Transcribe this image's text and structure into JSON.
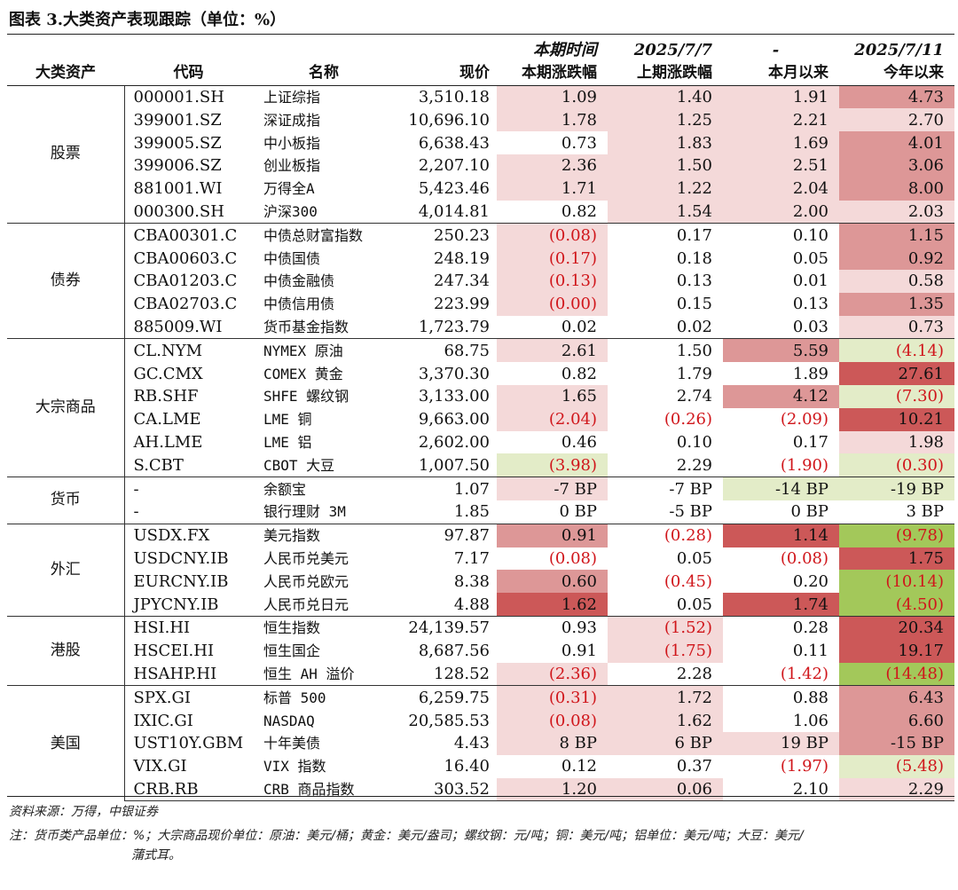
{
  "title": "图表 3.大类资产表现跟踪（单位：%）",
  "header": {
    "row1": [
      "",
      "",
      "",
      "",
      "本期时间",
      "2025/7/7",
      "-",
      "2025/7/11"
    ],
    "row2": [
      "大类资产",
      "代码",
      "名称",
      "现价",
      "本期涨跌幅",
      "上期涨跌幅",
      "本月以来",
      "今年以来"
    ]
  },
  "colors": {
    "light_red": "#f4d9d9",
    "mid_red": "#eab8b8",
    "red": "#dd9797",
    "dark_red": "#cc5858",
    "light_green": "#e3ecc8",
    "green": "#c8dc92",
    "dark_green": "#a3c85a",
    "negative_text": "#d0161b"
  },
  "groups": [
    {
      "name": "股票",
      "rows": [
        {
          "code": "000001.SH",
          "name": "上证综指",
          "price": "3,510.18",
          "cells": [
            {
              "v": "1.09",
              "bg": "light_red"
            },
            {
              "v": "1.40",
              "bg": "light_red"
            },
            {
              "v": "1.91",
              "bg": "light_red"
            },
            {
              "v": "4.73",
              "bg": "red"
            }
          ]
        },
        {
          "code": "399001.SZ",
          "name": "深证成指",
          "price": "10,696.10",
          "cells": [
            {
              "v": "1.78",
              "bg": "light_red"
            },
            {
              "v": "1.25",
              "bg": "light_red"
            },
            {
              "v": "2.21",
              "bg": "light_red"
            },
            {
              "v": "2.70",
              "bg": "light_red"
            }
          ]
        },
        {
          "code": "399005.SZ",
          "name": "中小板指",
          "price": "6,638.43",
          "cells": [
            {
              "v": "0.73",
              "bg": ""
            },
            {
              "v": "1.83",
              "bg": "light_red"
            },
            {
              "v": "1.69",
              "bg": "light_red"
            },
            {
              "v": "4.01",
              "bg": "red"
            }
          ]
        },
        {
          "code": "399006.SZ",
          "name": "创业板指",
          "price": "2,207.10",
          "cells": [
            {
              "v": "2.36",
              "bg": "light_red"
            },
            {
              "v": "1.50",
              "bg": "light_red"
            },
            {
              "v": "2.51",
              "bg": "light_red"
            },
            {
              "v": "3.06",
              "bg": "red"
            }
          ]
        },
        {
          "code": "881001.WI",
          "name": "万得全A",
          "price": "5,423.46",
          "cells": [
            {
              "v": "1.71",
              "bg": "light_red"
            },
            {
              "v": "1.22",
              "bg": "light_red"
            },
            {
              "v": "2.04",
              "bg": "light_red"
            },
            {
              "v": "8.00",
              "bg": "red"
            }
          ]
        },
        {
          "code": "000300.SH",
          "name": "沪深300",
          "price": "4,014.81",
          "cells": [
            {
              "v": "0.82",
              "bg": ""
            },
            {
              "v": "1.54",
              "bg": "light_red"
            },
            {
              "v": "2.00",
              "bg": "light_red"
            },
            {
              "v": "2.03",
              "bg": "light_red"
            }
          ]
        }
      ]
    },
    {
      "name": "债券",
      "rows": [
        {
          "code": "CBA00301.C",
          "name": "中债总财富指数",
          "price": "250.23",
          "cells": [
            {
              "v": "(0.08)",
              "bg": "light_red",
              "neg": true
            },
            {
              "v": "0.17",
              "bg": ""
            },
            {
              "v": "0.10",
              "bg": ""
            },
            {
              "v": "1.15",
              "bg": "red"
            }
          ]
        },
        {
          "code": "CBA00603.C",
          "name": "中债国债",
          "price": "248.19",
          "cells": [
            {
              "v": "(0.17)",
              "bg": "light_red",
              "neg": true
            },
            {
              "v": "0.18",
              "bg": ""
            },
            {
              "v": "0.05",
              "bg": ""
            },
            {
              "v": "0.92",
              "bg": "red"
            }
          ]
        },
        {
          "code": "CBA01203.C",
          "name": "中债金融债",
          "price": "247.34",
          "cells": [
            {
              "v": "(0.13)",
              "bg": "light_red",
              "neg": true
            },
            {
              "v": "0.13",
              "bg": ""
            },
            {
              "v": "0.01",
              "bg": ""
            },
            {
              "v": "0.58",
              "bg": "light_red"
            }
          ]
        },
        {
          "code": "CBA02703.C",
          "name": "中债信用债",
          "price": "223.99",
          "cells": [
            {
              "v": "(0.00)",
              "bg": "light_red",
              "neg": true
            },
            {
              "v": "0.15",
              "bg": ""
            },
            {
              "v": "0.13",
              "bg": ""
            },
            {
              "v": "1.35",
              "bg": "red"
            }
          ]
        },
        {
          "code": "885009.WI",
          "name": "货币基金指数",
          "price": "1,723.79",
          "cells": [
            {
              "v": "0.02",
              "bg": ""
            },
            {
              "v": "0.02",
              "bg": ""
            },
            {
              "v": "0.03",
              "bg": ""
            },
            {
              "v": "0.73",
              "bg": "light_red"
            }
          ]
        }
      ]
    },
    {
      "name": "大宗商品",
      "rows": [
        {
          "code": "CL.NYM",
          "name": "NYMEX 原油",
          "price": "68.75",
          "cells": [
            {
              "v": "2.61",
              "bg": "light_red"
            },
            {
              "v": "1.50",
              "bg": ""
            },
            {
              "v": "5.59",
              "bg": "red"
            },
            {
              "v": "(4.14)",
              "bg": "light_green",
              "neg": true
            }
          ]
        },
        {
          "code": "GC.CMX",
          "name": "COMEX 黄金",
          "price": "3,370.30",
          "cells": [
            {
              "v": "0.82",
              "bg": ""
            },
            {
              "v": "1.79",
              "bg": ""
            },
            {
              "v": "1.89",
              "bg": ""
            },
            {
              "v": "27.61",
              "bg": "dark_red"
            }
          ]
        },
        {
          "code": "RB.SHF",
          "name": "SHFE 螺纹钢",
          "price": "3,133.00",
          "cells": [
            {
              "v": "1.65",
              "bg": "light_red"
            },
            {
              "v": "2.74",
              "bg": ""
            },
            {
              "v": "4.12",
              "bg": "red"
            },
            {
              "v": "(7.30)",
              "bg": "light_green",
              "neg": true
            }
          ]
        },
        {
          "code": "CA.LME",
          "name": "LME 铜",
          "price": "9,663.00",
          "cells": [
            {
              "v": "(2.04)",
              "bg": "light_red",
              "neg": true
            },
            {
              "v": "(0.26)",
              "bg": "",
              "neg": true
            },
            {
              "v": "(2.09)",
              "bg": "",
              "neg": true
            },
            {
              "v": "10.21",
              "bg": "dark_red"
            }
          ]
        },
        {
          "code": "AH.LME",
          "name": "LME 铝",
          "price": "2,602.00",
          "cells": [
            {
              "v": "0.46",
              "bg": ""
            },
            {
              "v": "0.10",
              "bg": ""
            },
            {
              "v": "0.17",
              "bg": ""
            },
            {
              "v": "1.98",
              "bg": "light_red"
            }
          ]
        },
        {
          "code": "S.CBT",
          "name": "CBOT 大豆",
          "price": "1,007.50",
          "cells": [
            {
              "v": "(3.98)",
              "bg": "light_green",
              "neg": true
            },
            {
              "v": "2.29",
              "bg": ""
            },
            {
              "v": "(1.90)",
              "bg": "",
              "neg": true
            },
            {
              "v": "(0.30)",
              "bg": "light_green",
              "neg": true
            }
          ]
        }
      ]
    },
    {
      "name": "货币",
      "rows": [
        {
          "code": "-",
          "name": "余额宝",
          "price": "1.07",
          "cells": [
            {
              "v": "-7 BP",
              "bg": "light_red"
            },
            {
              "v": "-7 BP",
              "bg": ""
            },
            {
              "v": "-14 BP",
              "bg": "light_green"
            },
            {
              "v": "-19 BP",
              "bg": "light_green"
            }
          ]
        },
        {
          "code": "-",
          "name": "银行理财 3M",
          "price": "1.85",
          "cells": [
            {
              "v": "0 BP",
              "bg": ""
            },
            {
              "v": "-5 BP",
              "bg": ""
            },
            {
              "v": "0 BP",
              "bg": ""
            },
            {
              "v": "3 BP",
              "bg": ""
            }
          ]
        }
      ]
    },
    {
      "name": "外汇",
      "rows": [
        {
          "code": "USDX.FX",
          "name": "美元指数",
          "price": "97.87",
          "cells": [
            {
              "v": "0.91",
              "bg": "red"
            },
            {
              "v": "(0.28)",
              "bg": "",
              "neg": true
            },
            {
              "v": "1.14",
              "bg": "dark_red"
            },
            {
              "v": "(9.78)",
              "bg": "dark_green",
              "neg": true
            }
          ]
        },
        {
          "code": "USDCNY.IB",
          "name": "人民币兑美元",
          "price": "7.17",
          "cells": [
            {
              "v": "(0.08)",
              "bg": "",
              "neg": true
            },
            {
              "v": "0.05",
              "bg": ""
            },
            {
              "v": "(0.08)",
              "bg": "",
              "neg": true
            },
            {
              "v": "1.75",
              "bg": "dark_red"
            }
          ]
        },
        {
          "code": "EURCNY.IB",
          "name": "人民币兑欧元",
          "price": "8.38",
          "cells": [
            {
              "v": "0.60",
              "bg": "red"
            },
            {
              "v": "(0.45)",
              "bg": "",
              "neg": true
            },
            {
              "v": "0.20",
              "bg": ""
            },
            {
              "v": "(10.14)",
              "bg": "dark_green",
              "neg": true
            }
          ]
        },
        {
          "code": "JPYCNY.IB",
          "name": "人民币兑日元",
          "price": "4.88",
          "cells": [
            {
              "v": "1.62",
              "bg": "dark_red"
            },
            {
              "v": "0.05",
              "bg": ""
            },
            {
              "v": "1.74",
              "bg": "dark_red"
            },
            {
              "v": "(4.50)",
              "bg": "dark_green",
              "neg": true
            }
          ]
        }
      ]
    },
    {
      "name": "港股",
      "rows": [
        {
          "code": "HSI.HI",
          "name": "恒生指数",
          "price": "24,139.57",
          "cells": [
            {
              "v": "0.93",
              "bg": ""
            },
            {
              "v": "(1.52)",
              "bg": "light_red",
              "neg": true
            },
            {
              "v": "0.28",
              "bg": ""
            },
            {
              "v": "20.34",
              "bg": "dark_red"
            }
          ]
        },
        {
          "code": "HSCEI.HI",
          "name": "恒生国企",
          "price": "8,687.56",
          "cells": [
            {
              "v": "0.91",
              "bg": ""
            },
            {
              "v": "(1.75)",
              "bg": "light_red",
              "neg": true
            },
            {
              "v": "0.11",
              "bg": ""
            },
            {
              "v": "19.17",
              "bg": "dark_red"
            }
          ]
        },
        {
          "code": "HSAHP.HI",
          "name": "恒生 AH 溢价",
          "price": "128.52",
          "cells": [
            {
              "v": "(2.36)",
              "bg": "light_red",
              "neg": true
            },
            {
              "v": "2.28",
              "bg": ""
            },
            {
              "v": "(1.42)",
              "bg": "",
              "neg": true
            },
            {
              "v": "(14.48)",
              "bg": "dark_green",
              "neg": true
            }
          ]
        }
      ]
    },
    {
      "name": "美国",
      "rows": [
        {
          "code": "SPX.GI",
          "name": "标普 500",
          "price": "6,259.75",
          "cells": [
            {
              "v": "(0.31)",
              "bg": "light_red",
              "neg": true
            },
            {
              "v": "1.72",
              "bg": "light_red"
            },
            {
              "v": "0.88",
              "bg": ""
            },
            {
              "v": "6.43",
              "bg": "red"
            }
          ]
        },
        {
          "code": "IXIC.GI",
          "name": "NASDAQ",
          "price": "20,585.53",
          "cells": [
            {
              "v": "(0.08)",
              "bg": "light_red",
              "neg": true
            },
            {
              "v": "1.62",
              "bg": "light_red"
            },
            {
              "v": "1.06",
              "bg": ""
            },
            {
              "v": "6.60",
              "bg": "red"
            }
          ]
        },
        {
          "code": "UST10Y.GBM",
          "name": "十年美债",
          "price": "4.43",
          "cells": [
            {
              "v": "8 BP",
              "bg": "light_red"
            },
            {
              "v": "6 BP",
              "bg": "light_red"
            },
            {
              "v": "19 BP",
              "bg": "light_red"
            },
            {
              "v": "-15 BP",
              "bg": "red"
            }
          ]
        },
        {
          "code": "VIX.GI",
          "name": "VIX 指数",
          "price": "16.40",
          "cells": [
            {
              "v": "0.12",
              "bg": ""
            },
            {
              "v": "0.37",
              "bg": ""
            },
            {
              "v": "(1.97)",
              "bg": "",
              "neg": true
            },
            {
              "v": "(5.48)",
              "bg": "light_green",
              "neg": true
            }
          ]
        },
        {
          "code": "CRB.RB",
          "name": "CRB 商品指数",
          "price": "303.52",
          "cells": [
            {
              "v": "1.20",
              "bg": "light_red"
            },
            {
              "v": "0.06",
              "bg": "light_red"
            },
            {
              "v": "2.10",
              "bg": ""
            },
            {
              "v": "2.29",
              "bg": "light_red"
            }
          ]
        }
      ]
    }
  ],
  "footer": {
    "source": "资料来源：万得，中银证券",
    "note_line1": "注：货币类产品单位：%；大宗商品现价单位：原油：美元/桶；黄金：美元/盎司；螺纹钢：元/吨；铜：美元/吨；铝单位：美元/吨；大豆：美元/",
    "note_line2": "蒲式耳。"
  }
}
